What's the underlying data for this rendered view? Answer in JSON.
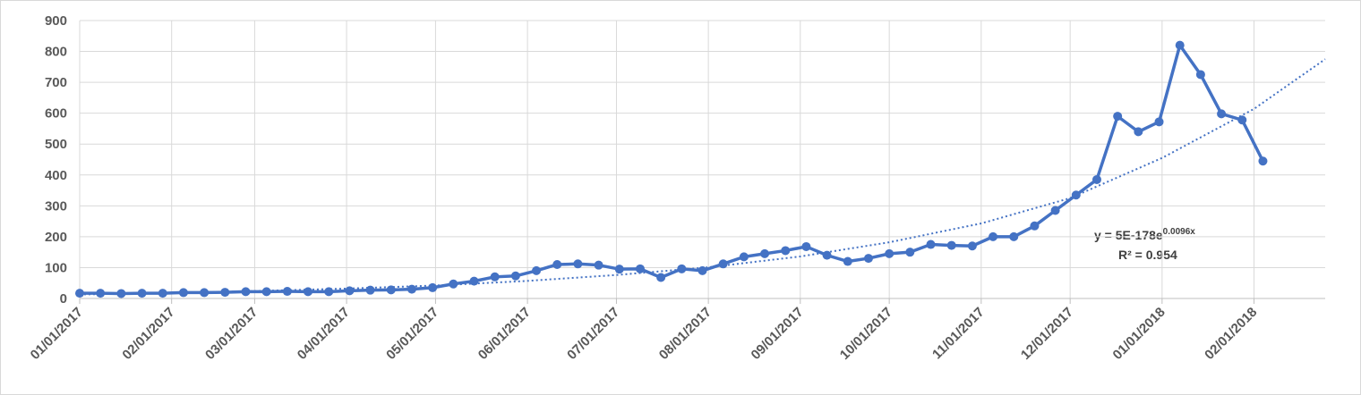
{
  "chart_data": {
    "type": "line",
    "x": [
      "2017-01-01",
      "2017-01-08",
      "2017-01-15",
      "2017-01-22",
      "2017-01-29",
      "2017-02-05",
      "2017-02-12",
      "2017-02-19",
      "2017-02-26",
      "2017-03-05",
      "2017-03-12",
      "2017-03-19",
      "2017-03-26",
      "2017-04-02",
      "2017-04-09",
      "2017-04-16",
      "2017-04-23",
      "2017-04-30",
      "2017-05-07",
      "2017-05-14",
      "2017-05-21",
      "2017-05-28",
      "2017-06-04",
      "2017-06-11",
      "2017-06-18",
      "2017-06-25",
      "2017-07-02",
      "2017-07-09",
      "2017-07-16",
      "2017-07-23",
      "2017-07-30",
      "2017-08-06",
      "2017-08-13",
      "2017-08-20",
      "2017-08-27",
      "2017-09-03",
      "2017-09-10",
      "2017-09-17",
      "2017-09-24",
      "2017-10-01",
      "2017-10-08",
      "2017-10-15",
      "2017-10-22",
      "2017-10-29",
      "2017-11-05",
      "2017-11-12",
      "2017-11-19",
      "2017-11-26",
      "2017-12-03",
      "2017-12-10",
      "2017-12-17",
      "2017-12-24",
      "2017-12-31",
      "2018-01-07",
      "2018-01-14",
      "2018-01-21",
      "2018-01-28",
      "2018-02-04"
    ],
    "series": [
      {
        "color": "#4472c4",
        "values": [
          17,
          17,
          16,
          17,
          17,
          19,
          19,
          20,
          22,
          22,
          23,
          22,
          22,
          25,
          27,
          28,
          30,
          35,
          47,
          56,
          70,
          73,
          90,
          110,
          112,
          108,
          95,
          96,
          68,
          96,
          90,
          112,
          135,
          145,
          155,
          168,
          140,
          120,
          130,
          145,
          150,
          175,
          172,
          170,
          200,
          200,
          235,
          285,
          335,
          385,
          590,
          540,
          572,
          820,
          725,
          598,
          578,
          445
        ]
      }
    ],
    "trendline": {
      "color": "#4472c4",
      "x": [
        "2017-01-01",
        "2017-02-01",
        "2017-03-01",
        "2017-04-01",
        "2017-05-01",
        "2017-06-01",
        "2017-07-01",
        "2017-08-01",
        "2017-09-01",
        "2017-10-01",
        "2017-11-01",
        "2017-12-01",
        "2018-01-01",
        "2018-02-01",
        "2018-02-25"
      ],
      "values": [
        13,
        18,
        24,
        32,
        42,
        57,
        76,
        101,
        136,
        182,
        243,
        325,
        455,
        614,
        775
      ]
    },
    "annotation": {
      "equation": "y = 5E-178e",
      "exponent": "0.0096x",
      "r2": "R² = 0.954"
    },
    "xlim": [
      "2017-01-01",
      "2018-02-25"
    ],
    "xticks": [
      {
        "value": "2017-01-01",
        "label": "01/01/2017"
      },
      {
        "value": "2017-02-01",
        "label": "02/01/2017"
      },
      {
        "value": "2017-03-01",
        "label": "03/01/2017"
      },
      {
        "value": "2017-04-01",
        "label": "04/01/2017"
      },
      {
        "value": "2017-05-01",
        "label": "05/01/2017"
      },
      {
        "value": "2017-06-01",
        "label": "06/01/2017"
      },
      {
        "value": "2017-07-01",
        "label": "07/01/2017"
      },
      {
        "value": "2017-08-01",
        "label": "08/01/2017"
      },
      {
        "value": "2017-09-01",
        "label": "09/01/2017"
      },
      {
        "value": "2017-10-01",
        "label": "10/01/2017"
      },
      {
        "value": "2017-11-01",
        "label": "11/01/2017"
      },
      {
        "value": "2017-12-01",
        "label": "12/01/2017"
      },
      {
        "value": "2018-01-01",
        "label": "01/01/2018"
      },
      {
        "value": "2018-02-01",
        "label": "02/01/2018"
      }
    ],
    "ylim": [
      0,
      900
    ],
    "yticks": [
      0,
      100,
      200,
      300,
      400,
      500,
      600,
      700,
      800,
      900
    ],
    "grid": true
  }
}
